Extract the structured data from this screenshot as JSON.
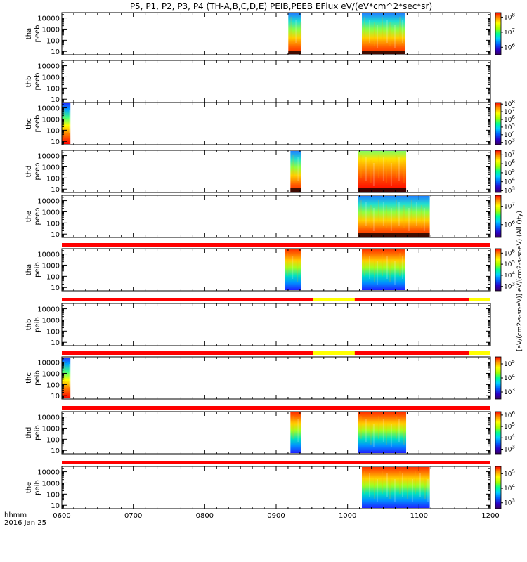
{
  "chart_data": {
    "type": "heatmap",
    "title": "P5, P1, P2, P3, P4 (TH-A,B,C,D,E) PEIB,PEEB EFlux eV/(eV*cm^2*sec*sr)",
    "x": {
      "ticks": [
        "0600",
        "0700",
        "0800",
        "0900",
        "1000",
        "1100",
        "1200"
      ],
      "range_hours": [
        6,
        12
      ],
      "label_line1": "hhmm",
      "label_line2": "2016 Jan 25"
    },
    "y": {
      "scale": "log",
      "ticks": [
        "10",
        "100",
        "1000",
        "10000"
      ],
      "range_eV": [
        5,
        30000
      ]
    },
    "colorbar_unit_label": "[eV/(cm2-s-sr-eV)]  eV/(cm2-s-sr-eV) (All Qty)",
    "panels": [
      {
        "label1": "tha",
        "label2": "peeb",
        "cbar_ticks": [
          "10^6",
          "10^7",
          "10^8"
        ],
        "cbar_exp_range": [
          5.5,
          8.3
        ],
        "segments": [
          {
            "start": 9.17,
            "end": 9.35,
            "kind": "a"
          },
          {
            "start": 10.2,
            "end": 10.8,
            "kind": "a"
          }
        ]
      },
      {
        "label1": "thb",
        "label2": "peeb",
        "cbar_ticks": [],
        "cbar_exp_range": null,
        "segments": []
      },
      {
        "label1": "thc",
        "label2": "peeb",
        "cbar_ticks": [
          "10^3",
          "10^4",
          "10^5",
          "10^6",
          "10^7",
          "10^8"
        ],
        "cbar_exp_range": [
          2.7,
          8.2
        ],
        "segments": [
          {
            "start": 6.0,
            "end": 6.12,
            "kind": "c"
          }
        ]
      },
      {
        "label1": "thd",
        "label2": "peeb",
        "cbar_ticks": [
          "10^3",
          "10^4",
          "10^5",
          "10^6",
          "10^7"
        ],
        "cbar_exp_range": [
          2.8,
          7.5
        ],
        "segments": [
          {
            "start": 9.2,
            "end": 9.35,
            "kind": "a"
          },
          {
            "start": 10.15,
            "end": 10.82,
            "kind": "b"
          }
        ]
      },
      {
        "label1": "the",
        "label2": "peeb",
        "cbar_ticks": [
          "10^6",
          "10^7"
        ],
        "cbar_exp_range": [
          5.3,
          7.6
        ],
        "segments": [
          {
            "start": 10.15,
            "end": 11.15,
            "kind": "a"
          }
        ]
      },
      {
        "label1": "tha",
        "label2": "peib",
        "cbar_ticks": [
          "10^3",
          "10^4",
          "10^5",
          "10^6"
        ],
        "cbar_exp_range": [
          2.6,
          6.4
        ],
        "segments": [
          {
            "start": 9.12,
            "end": 9.35,
            "kind": "i"
          },
          {
            "start": 10.2,
            "end": 10.8,
            "kind": "i"
          }
        ]
      },
      {
        "label1": "thb",
        "label2": "peib",
        "cbar_ticks": [],
        "cbar_exp_range": null,
        "segments": []
      },
      {
        "label1": "thc",
        "label2": "peib",
        "cbar_ticks": [
          "10^3",
          "10^4",
          "10^5"
        ],
        "cbar_exp_range": [
          2.5,
          5.5
        ],
        "segments": [
          {
            "start": 6.0,
            "end": 6.12,
            "kind": "c"
          }
        ]
      },
      {
        "label1": "thd",
        "label2": "peib",
        "cbar_ticks": [
          "10^3",
          "10^4",
          "10^5",
          "10^6"
        ],
        "cbar_exp_range": [
          2.6,
          6.3
        ],
        "segments": [
          {
            "start": 9.2,
            "end": 9.35,
            "kind": "i"
          },
          {
            "start": 10.15,
            "end": 10.82,
            "kind": "i"
          }
        ]
      },
      {
        "label1": "the",
        "label2": "peib",
        "cbar_ticks": [
          "10^3",
          "10^4",
          "10^5"
        ],
        "cbar_exp_range": [
          2.6,
          5.5
        ],
        "segments": [
          {
            "start": 10.2,
            "end": 11.15,
            "kind": "i"
          }
        ]
      }
    ],
    "flag_bars": [
      {
        "after_panel": 5,
        "yellow": []
      },
      {
        "after_panel": 6,
        "yellow": [
          [
            9.52,
            10.1
          ],
          [
            11.7,
            12.0
          ]
        ]
      },
      {
        "after_panel": 7,
        "yellow": [
          [
            9.52,
            10.1
          ],
          [
            11.7,
            12.0
          ]
        ]
      },
      {
        "after_panel": 8,
        "yellow": []
      },
      {
        "after_panel": 9,
        "yellow": []
      }
    ],
    "colors": {
      "flag_red": "#ff0000",
      "flag_yellow": "#ffff00",
      "frame": "#000000"
    }
  }
}
